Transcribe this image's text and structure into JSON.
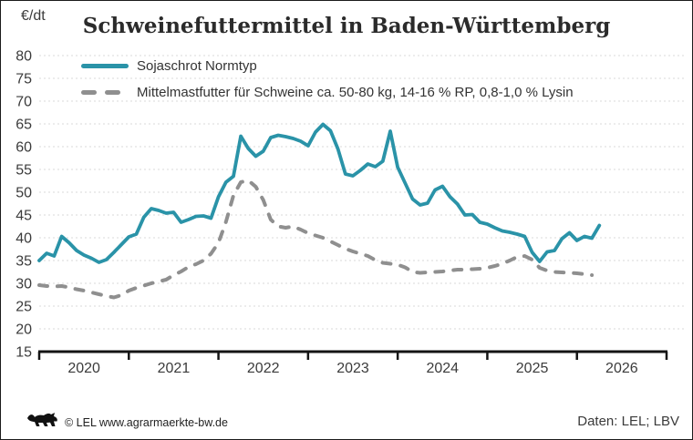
{
  "page": {
    "ylabel_unit": "€/dt",
    "copyright": "© LEL www.agrarmaerkte-bw.de",
    "source": "Daten: LEL; LBV"
  },
  "chart_data": {
    "type": "line",
    "title": "Schweinefuttermittel in Baden-Württemberg",
    "ylabel": "€/dt",
    "ylim": [
      15,
      80
    ],
    "yticks": [
      15,
      20,
      25,
      30,
      35,
      40,
      45,
      50,
      55,
      60,
      65,
      70,
      75,
      80
    ],
    "x_tick_labels": [
      "2020",
      "2021",
      "2022",
      "2023",
      "2024",
      "2025",
      "2026"
    ],
    "x_axis_span_years": [
      2020,
      2027
    ],
    "x_resolution": "monthly",
    "x_monthly_from": "2020-01",
    "grid": "horizontal-dashed",
    "legend_position": "top-left-inside",
    "colors": {
      "axis": "#141414",
      "grid": "#d9d9d9",
      "tick_text": "#3b3b3b"
    },
    "series": [
      {
        "name": "Sojaschrot Normtyp",
        "color": "#2a93a8",
        "style": "solid",
        "values": [
          35.0,
          36.6,
          36.0,
          40.3,
          38.9,
          37.2,
          36.2,
          35.5,
          34.6,
          35.2,
          36.8,
          38.5,
          40.2,
          40.8,
          44.5,
          46.4,
          46.0,
          45.4,
          45.6,
          43.4,
          44.0,
          44.7,
          44.8,
          44.3,
          49.0,
          52.2,
          53.5,
          62.3,
          59.6,
          57.9,
          59.0,
          62.0,
          62.5,
          62.2,
          61.8,
          61.2,
          60.2,
          63.2,
          64.9,
          63.5,
          59.5,
          54.0,
          53.6,
          54.8,
          56.2,
          55.6,
          56.8,
          63.4,
          55.5,
          52.0,
          48.5,
          47.2,
          47.6,
          50.5,
          51.3,
          49.0,
          47.4,
          45.0,
          45.1,
          43.4,
          43.0,
          42.2,
          41.5,
          41.2,
          40.8,
          40.3,
          36.8,
          34.8,
          36.9,
          37.2,
          39.8,
          41.1,
          39.4,
          40.3,
          39.9,
          42.7
        ]
      },
      {
        "name": "Mittelmastfutter für Schweine ca. 50-80 kg, 14-16 % RP, 0,8-1,0 % Lysin",
        "color": "#8f8f8f",
        "style": "dashed",
        "values": [
          29.6,
          29.4,
          29.3,
          29.4,
          29.1,
          28.7,
          28.4,
          28.0,
          27.6,
          27.2,
          26.9,
          27.4,
          28.4,
          29.0,
          29.5,
          30.0,
          30.4,
          30.8,
          31.8,
          32.6,
          33.6,
          34.2,
          35.0,
          36.5,
          38.9,
          43.5,
          49.3,
          52.2,
          52.6,
          51.2,
          48.3,
          44.0,
          42.5,
          42.2,
          42.5,
          41.8,
          41.0,
          40.5,
          40.0,
          39.2,
          38.4,
          37.6,
          37.0,
          36.5,
          36.0,
          35.1,
          34.5,
          34.3,
          34.1,
          33.5,
          32.5,
          32.3,
          32.4,
          32.5,
          32.6,
          32.8,
          33.0,
          33.0,
          33.1,
          33.2,
          33.4,
          33.8,
          34.3,
          35.0,
          35.8,
          36.0,
          35.2,
          33.4,
          32.8,
          32.5,
          32.4,
          32.3,
          32.2,
          32.0,
          31.8
        ]
      }
    ]
  }
}
